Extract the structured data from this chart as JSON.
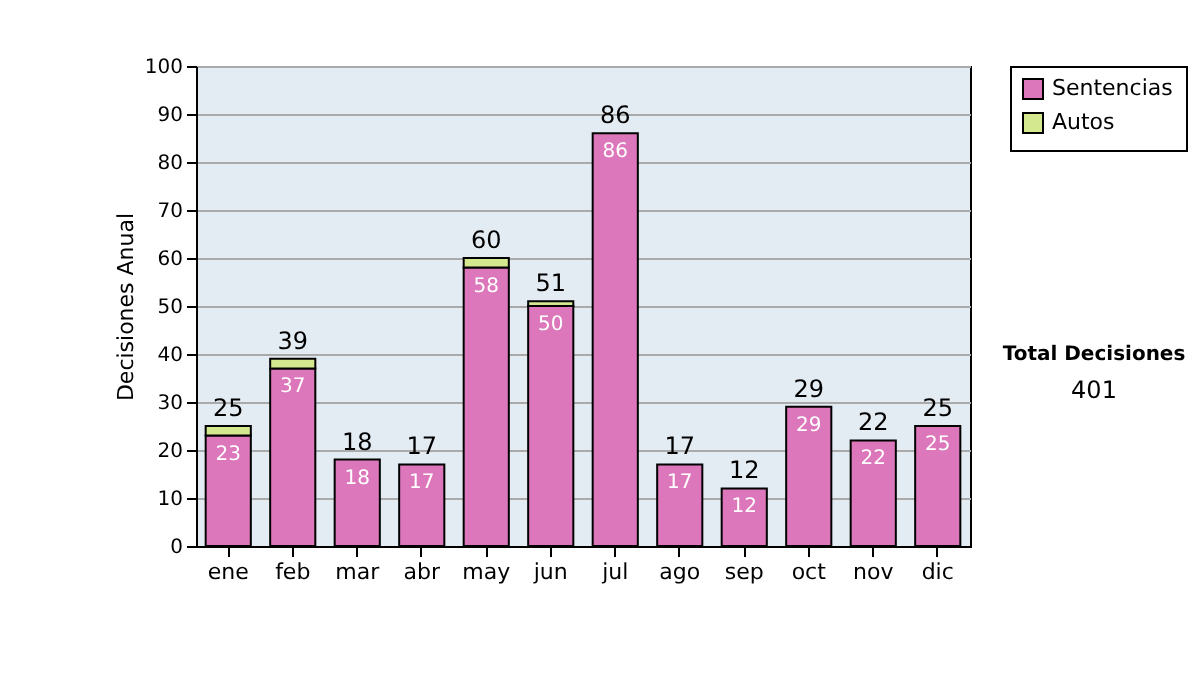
{
  "chart_data": {
    "type": "bar",
    "stacked": true,
    "ylabel": "Decisiones Anual",
    "categories": [
      "ene",
      "feb",
      "mar",
      "abr",
      "may",
      "jun",
      "jul",
      "ago",
      "sep",
      "oct",
      "nov",
      "dic"
    ],
    "series": [
      {
        "name": "Sentencias",
        "color": "#dd77bb",
        "values": [
          23,
          37,
          18,
          17,
          58,
          50,
          86,
          17,
          12,
          29,
          22,
          25
        ],
        "value_labels": [
          "23",
          "37",
          "18",
          "17",
          "58",
          "50",
          "86",
          "17",
          "12",
          "29",
          "22",
          "25"
        ]
      },
      {
        "name": "Autos",
        "color": "#d4e88f",
        "values": [
          2,
          2,
          null,
          null,
          2,
          1,
          null,
          null,
          null,
          null,
          null,
          null
        ]
      }
    ],
    "totals": [
      "25",
      "39",
      "18",
      "17",
      "60",
      "51",
      "86",
      "17",
      "12",
      "29",
      "22",
      "25"
    ],
    "ylim": [
      0,
      100
    ],
    "yticks": [
      0,
      10,
      20,
      30,
      40,
      50,
      60,
      70,
      80,
      90,
      100
    ],
    "grid": "y",
    "legend": "right",
    "annotations": [
      "Total Decisiones",
      "401"
    ]
  }
}
